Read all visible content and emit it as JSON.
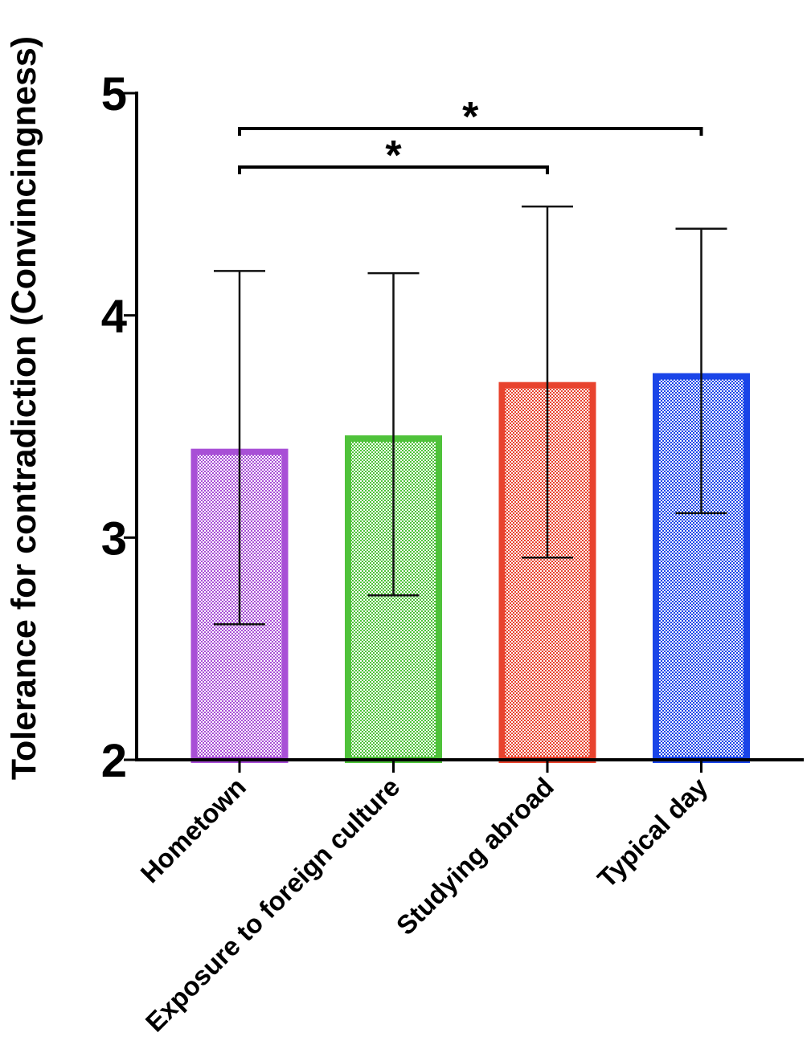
{
  "chart_data": {
    "type": "bar",
    "title": "",
    "xlabel": "",
    "ylabel": "Tolerance for contradiction (Convincingness)",
    "ylim": [
      2,
      5
    ],
    "yticks": [
      2,
      3,
      4,
      5
    ],
    "categories": [
      "Hometown",
      "Exposure to foreign culture",
      "Studying abroad",
      "Typical day"
    ],
    "values": [
      3.4,
      3.46,
      3.7,
      3.74
    ],
    "error_upper": [
      4.2,
      4.19,
      4.49,
      4.39
    ],
    "error_lower": [
      2.61,
      2.74,
      2.91,
      3.11
    ],
    "colors": [
      "#a84fd6",
      "#4fc23a",
      "#e8432e",
      "#1a45e8"
    ],
    "significance": [
      {
        "from": 0,
        "to": 2,
        "label": "*"
      },
      {
        "from": 0,
        "to": 3,
        "label": "*"
      }
    ]
  }
}
